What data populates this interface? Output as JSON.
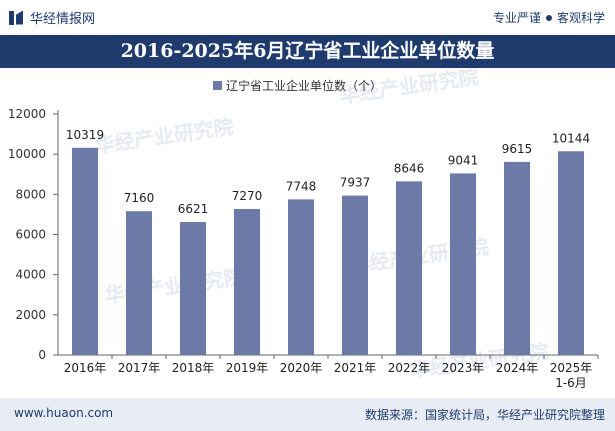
{
  "header": {
    "brand_name": "华经情报网",
    "tagline_left": "专业严谨",
    "tagline_right": "客观科学"
  },
  "title": "2016-2025年6月辽宁省工业企业单位数量",
  "watermark": "华经产业研究院",
  "footer": {
    "url": "www.huaon.com",
    "source": "数据来源：国家统计局，华经产业研究院整理"
  },
  "colors": {
    "brand": "#1f3b6e",
    "bar": "#6b7aa6"
  },
  "chart_data": {
    "type": "bar",
    "categories": [
      "2016年",
      "2017年",
      "2018年",
      "2019年",
      "2020年",
      "2021年",
      "2022年",
      "2023年",
      "2024年",
      "2025年\n1-6月"
    ],
    "series": [
      {
        "name": "辽宁省工业企业单位数（个）",
        "values": [
          10319,
          7160,
          6621,
          7270,
          7748,
          7937,
          8646,
          9041,
          9615,
          10144
        ]
      }
    ],
    "y_ticks": [
      0,
      2000,
      4000,
      6000,
      8000,
      10000,
      12000
    ],
    "ylim": [
      0,
      12000
    ],
    "legend_position": "top-center",
    "grid": false
  }
}
